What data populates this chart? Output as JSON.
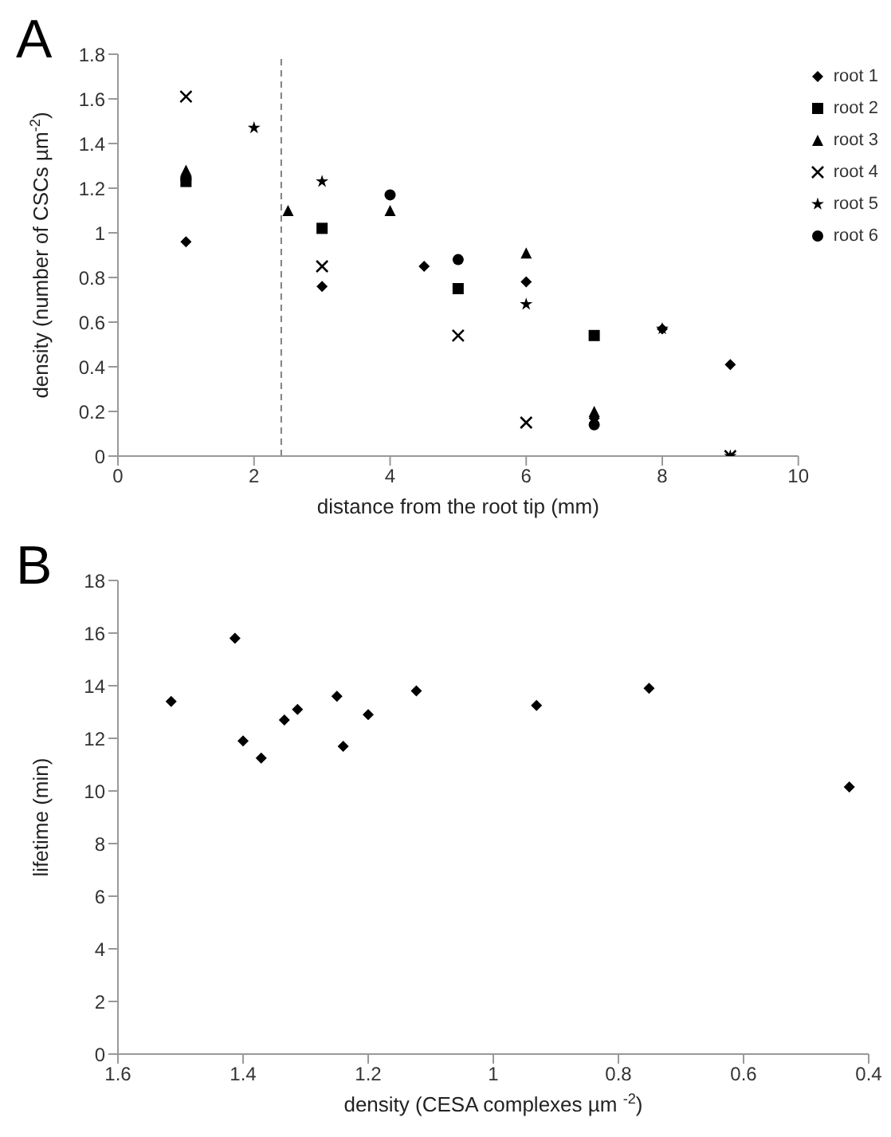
{
  "chart_data": [
    {
      "type": "scatter",
      "title": "A",
      "xlabel": "distance from the root tip (mm)",
      "ylabel": "density (number of CSCs µm$^{-2}$)",
      "xlim": [
        0,
        10
      ],
      "xticks": [
        0,
        2,
        4,
        6,
        8,
        10
      ],
      "ylim": [
        0,
        1.8
      ],
      "yticks": [
        0,
        0.2,
        0.4,
        0.6,
        0.8,
        1,
        1.2,
        1.4,
        1.6,
        1.8
      ],
      "legend": "top right",
      "ref_lines": [
        {
          "axis": "x",
          "value": 2.4,
          "color": "#808080",
          "line_style": "dashed"
        }
      ],
      "series": [
        {
          "name": "root 1",
          "color": "#000000",
          "marker": "diamond",
          "x": [
            1,
            3,
            4.5,
            6,
            8,
            9,
            7
          ],
          "values": [
            0.96,
            0.76,
            0.85,
            0.78,
            0.57,
            0.41,
            0.17
          ]
        },
        {
          "name": "root 2",
          "color": "#000000",
          "marker": "square",
          "x": [
            1,
            3,
            5,
            7
          ],
          "values": [
            1.23,
            1.02,
            0.75,
            0.54
          ]
        },
        {
          "name": "root 3",
          "color": "#000000",
          "marker": "triangle",
          "x": [
            1,
            2.5,
            4,
            6,
            7
          ],
          "values": [
            1.28,
            1.1,
            1.1,
            0.91,
            0.2
          ]
        },
        {
          "name": "root 4",
          "color": "#000000",
          "marker": "cross",
          "x": [
            1,
            3,
            5,
            6,
            9
          ],
          "values": [
            1.61,
            0.85,
            0.54,
            0.15,
            0
          ]
        },
        {
          "name": "root 5",
          "color": "#000000",
          "marker": "star",
          "x": [
            2,
            3,
            6,
            8,
            9
          ],
          "values": [
            1.47,
            1.23,
            0.68,
            0.57,
            0
          ]
        },
        {
          "name": "root 6",
          "color": "#000000",
          "marker": "circle",
          "x": [
            1,
            4,
            5,
            7
          ],
          "values": [
            1.24,
            1.17,
            0.88,
            0.14
          ]
        }
      ]
    },
    {
      "type": "scatter",
      "title": "B",
      "xlabel": "density (CESA complexes µm $^{-2}$)",
      "ylabel": "lifetime (min)",
      "xlim": [
        1.6,
        0.4
      ],
      "xticks": [
        1.6,
        1.4,
        1.2,
        1,
        0.8,
        0.6,
        0.4
      ],
      "ylim": [
        0,
        18
      ],
      "yticks": [
        0,
        2,
        4,
        6,
        8,
        10,
        12,
        14,
        16,
        18
      ],
      "series": [
        {
          "color": "#000000",
          "marker": "diamond",
          "x": [
            1.515,
            1.413,
            1.4,
            1.371,
            1.334,
            1.313,
            1.25,
            1.24,
            1.2,
            1.123,
            0.931,
            0.751,
            0.431
          ],
          "values": [
            13.4,
            15.8,
            11.9,
            11.25,
            12.7,
            13.1,
            13.6,
            11.7,
            12.9,
            13.8,
            13.25,
            13.9,
            10.15
          ]
        }
      ]
    }
  ]
}
